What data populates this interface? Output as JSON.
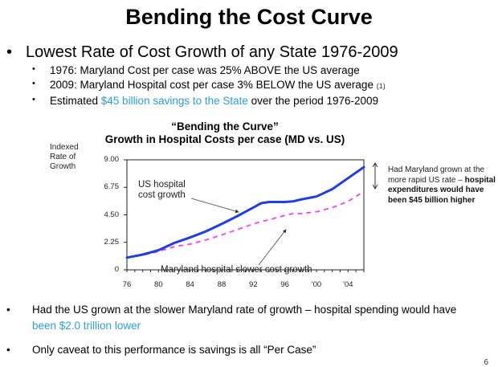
{
  "slide": {
    "title": "Bending the Cost Curve",
    "bullets": {
      "main": "Lowest Rate of Cost Growth of any State 1976-2009",
      "sub": [
        {
          "text": "1976: Maryland Cost per case was 25% ABOVE the US average"
        },
        {
          "text": "2009: Maryland Hospital cost per case 3% BELOW the US average",
          "note": "(1)"
        },
        {
          "prefix": "Estimated ",
          "highlight": "$45 billion savings to the State",
          "suffix": " over the period 1976-2009"
        }
      ]
    },
    "bottom_bullets": [
      {
        "text": "Had the US grown at the slower Maryland rate of growth – hospital spending would have",
        "highlight": "been $2.0 trillion lower"
      },
      {
        "text": "Only caveat to this performance is savings is all “Per Case”"
      }
    ],
    "side_note": {
      "normal": "Had Maryland grown at the more rapid US rate –",
      "bold": "hospital expenditures would have been $45 billion higher"
    },
    "page_number": "6",
    "colors": {
      "accent": "#2a9fd6",
      "us_line": "#1f3fe0",
      "md_line": "#ee44ee"
    }
  },
  "chart_data": {
    "type": "line",
    "title": "“Bending the Curve”",
    "subtitle": "Growth in Hospital Costs per case (MD vs. US)",
    "ylabel": "Indexed Rate of Growth",
    "xlabel": "",
    "ylim": [
      0,
      9
    ],
    "xlim": [
      1976,
      2006
    ],
    "yticks": [
      "0",
      "2.25",
      "4.50",
      "6.75",
      "9.00"
    ],
    "ytick_values": [
      0,
      2.25,
      4.5,
      6.75,
      9
    ],
    "xticks": [
      "76",
      "80",
      "84",
      "88",
      "92",
      "96",
      "'00",
      "'04"
    ],
    "xtick_values": [
      1976,
      1980,
      1984,
      1988,
      1992,
      1996,
      2000,
      2004
    ],
    "grid": false,
    "x": [
      1976,
      1978,
      1980,
      1982,
      1984,
      1986,
      1988,
      1990,
      1992,
      1993,
      1994,
      1996,
      1997,
      1998,
      2000,
      2002,
      2004,
      2006
    ],
    "series": [
      {
        "name": "US hospital cost growth",
        "style": "solid",
        "values": [
          1.0,
          1.25,
          1.6,
          2.2,
          2.65,
          3.15,
          3.75,
          4.4,
          5.1,
          5.45,
          5.55,
          5.55,
          5.6,
          5.75,
          6.0,
          6.6,
          7.5,
          8.4
        ]
      },
      {
        "name": "Maryland hospital slower cost growth",
        "style": "dashed",
        "values": [
          1.0,
          1.2,
          1.5,
          1.9,
          2.1,
          2.45,
          2.85,
          3.3,
          3.75,
          3.95,
          4.1,
          4.45,
          4.6,
          4.6,
          4.75,
          5.1,
          5.6,
          6.4
        ]
      }
    ],
    "annotations": [
      {
        "text": "US hospital cost growth",
        "line1": "US hospital",
        "line2": "cost growth",
        "points_to": "US series near 1990"
      },
      {
        "text": "Maryland hospital slower cost growth",
        "points_to": "MD series near 1995"
      }
    ]
  }
}
